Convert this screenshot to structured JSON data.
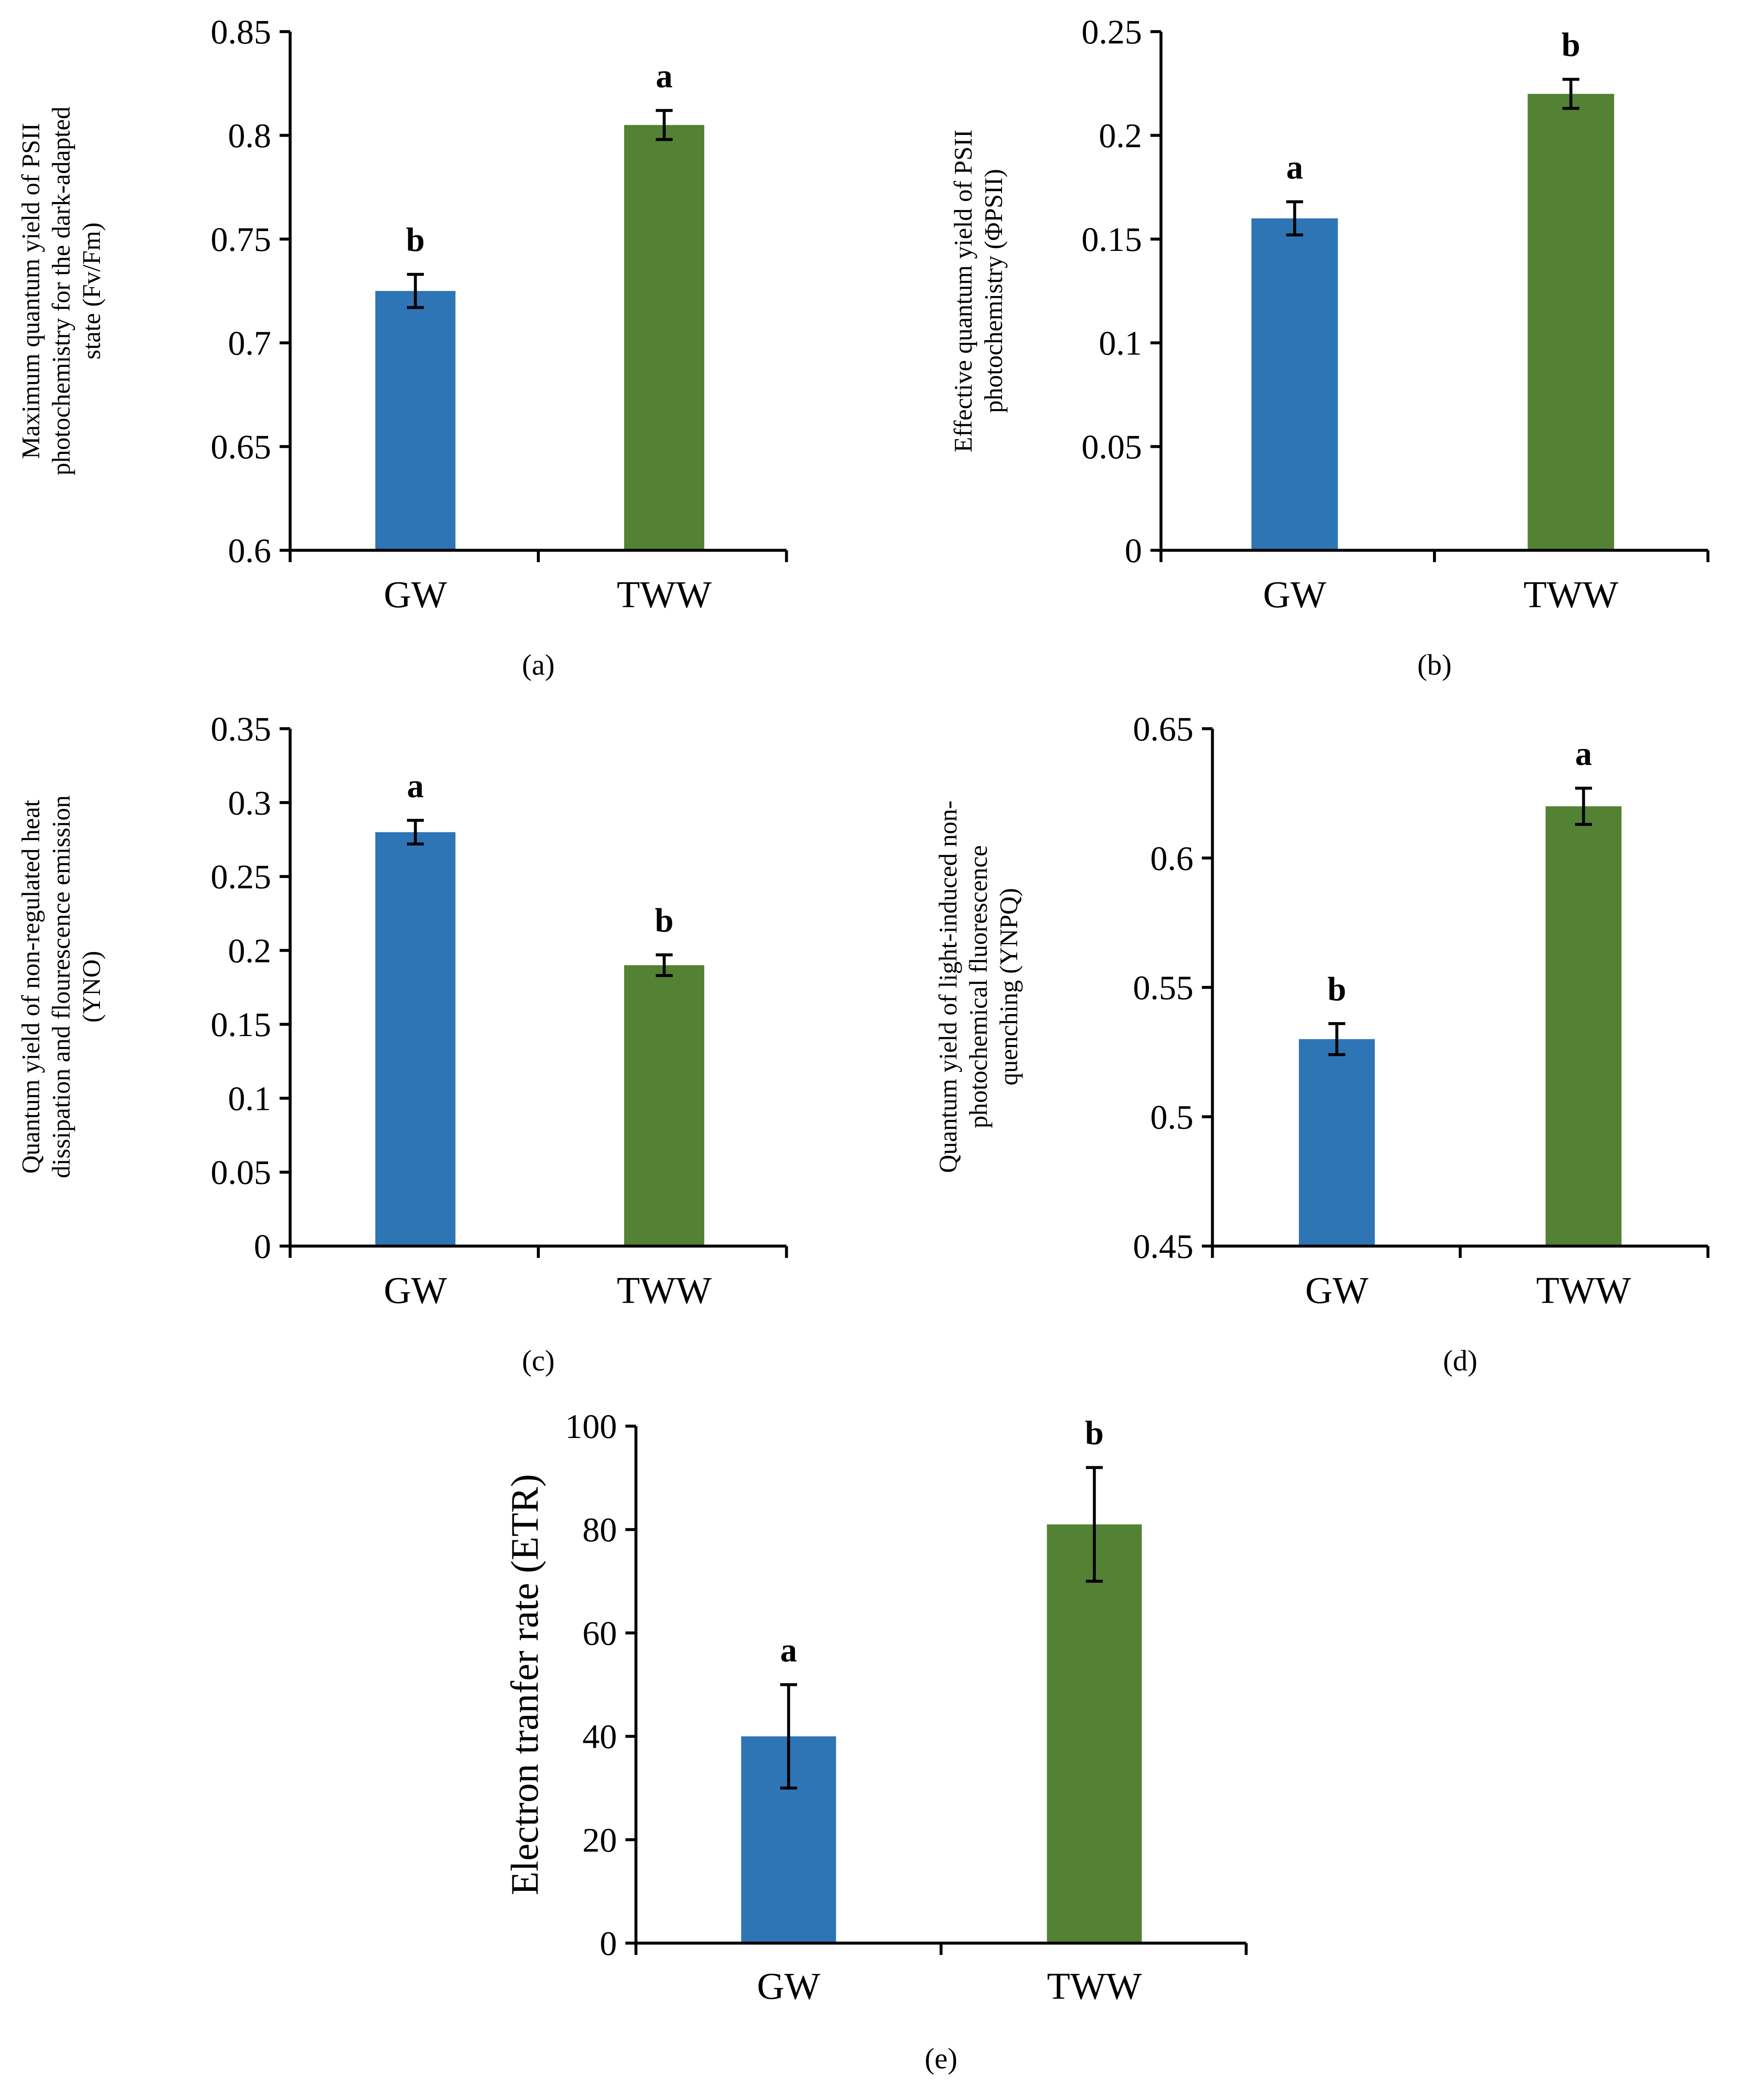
{
  "chart_data": [
    {
      "id": "a",
      "type": "bar",
      "panel_label": "(a)",
      "ylabel": [
        "Maximum quantum yield of PSII",
        "photochemistry for the dark-adapted",
        "state (Fv/Fm)"
      ],
      "categories": [
        "GW",
        "TWW"
      ],
      "values": [
        0.725,
        0.805
      ],
      "errors": [
        0.008,
        0.007
      ],
      "significance": [
        "b",
        "a"
      ],
      "ylim": [
        0.6,
        0.85
      ],
      "yticks": [
        0.6,
        0.65,
        0.7,
        0.75,
        0.8,
        0.85
      ],
      "ytick_labels": [
        "0.6",
        "0.65",
        "0.7",
        "0.75",
        "0.8",
        "0.85"
      ],
      "colors": [
        "#2e75b6",
        "#548235"
      ]
    },
    {
      "id": "b",
      "type": "bar",
      "panel_label": "(b)",
      "ylabel": [
        "Effective quantum yield of PSII",
        "photochemistry (ΦPSII)"
      ],
      "categories": [
        "GW",
        "TWW"
      ],
      "values": [
        0.16,
        0.22
      ],
      "errors": [
        0.008,
        0.007
      ],
      "significance": [
        "a",
        "b"
      ],
      "ylim": [
        0,
        0.25
      ],
      "yticks": [
        0,
        0.05,
        0.1,
        0.15,
        0.2,
        0.25
      ],
      "ytick_labels": [
        "0",
        "0.05",
        "0.1",
        "0.15",
        "0.2",
        "0.25"
      ],
      "colors": [
        "#2e75b6",
        "#548235"
      ]
    },
    {
      "id": "c",
      "type": "bar",
      "panel_label": "(c)",
      "ylabel": [
        "Quantum yield of non-regulated heat",
        "dissipation and flourescence emission",
        "(YNO)"
      ],
      "categories": [
        "GW",
        "TWW"
      ],
      "values": [
        0.28,
        0.19
      ],
      "errors": [
        0.008,
        0.007
      ],
      "significance": [
        "a",
        "b"
      ],
      "ylim": [
        0,
        0.35
      ],
      "yticks": [
        0,
        0.05,
        0.1,
        0.15,
        0.2,
        0.25,
        0.3,
        0.35
      ],
      "ytick_labels": [
        "0",
        "0.05",
        "0.1",
        "0.15",
        "0.2",
        "0.25",
        "0.3",
        "0.35"
      ],
      "colors": [
        "#2e75b6",
        "#548235"
      ]
    },
    {
      "id": "d",
      "type": "bar",
      "panel_label": "(d)",
      "ylabel": [
        "Quantum yield of light-induced non-",
        "photochemical fluorescence",
        "quenching (YNPQ)"
      ],
      "categories": [
        "GW",
        "TWW"
      ],
      "values": [
        0.53,
        0.62
      ],
      "errors": [
        0.006,
        0.007
      ],
      "significance": [
        "b",
        "a"
      ],
      "ylim": [
        0.45,
        0.65
      ],
      "yticks": [
        0.45,
        0.5,
        0.55,
        0.6,
        0.65
      ],
      "ytick_labels": [
        "0.45",
        "0.5",
        "0.55",
        "0.6",
        "0.65"
      ],
      "colors": [
        "#2e75b6",
        "#548235"
      ]
    },
    {
      "id": "e",
      "type": "bar",
      "panel_label": "(e)",
      "ylabel": [
        "Electron tranfer rate (ETR)"
      ],
      "categories": [
        "GW",
        "TWW"
      ],
      "values": [
        40,
        81
      ],
      "errors": [
        10,
        11
      ],
      "significance": [
        "a",
        "b"
      ],
      "ylim": [
        0,
        100
      ],
      "yticks": [
        0,
        20,
        40,
        60,
        80,
        100
      ],
      "ytick_labels": [
        "0",
        "20",
        "40",
        "60",
        "80",
        "100"
      ],
      "colors": [
        "#2e75b6",
        "#548235"
      ]
    }
  ]
}
